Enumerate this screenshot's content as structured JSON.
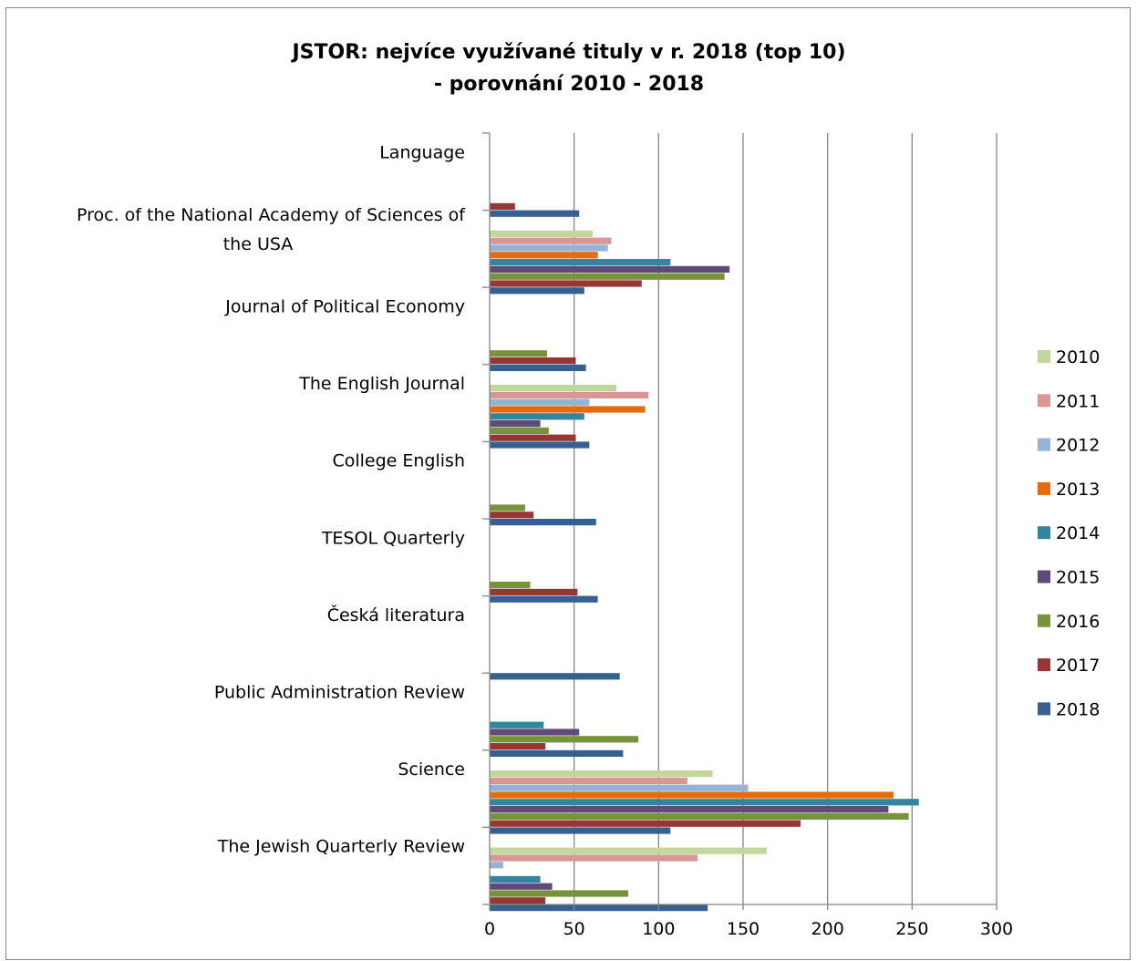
{
  "chart_data": {
    "type": "bar",
    "orientation": "horizontal",
    "title": [
      "JSTOR: nejvíce využívané tituly v r. 2018 (top 10)",
      "- porovnání 2010 - 2018"
    ],
    "categories": [
      "Language",
      "Proc. of the National Academy of Sciences of the USA",
      "Journal of Political Economy",
      "The English Journal",
      "College English",
      "TESOL Quarterly",
      "Česká literatura",
      "Public Administration Review",
      "Science",
      "The Jewish Quarterly Review"
    ],
    "category_label_lines": [
      [
        "Language"
      ],
      [
        "Proc. of the National Academy of Sciences of",
        "the USA"
      ],
      [
        "Journal of Political Economy"
      ],
      [
        "The English Journal"
      ],
      [
        "College English"
      ],
      [
        "TESOL Quarterly"
      ],
      [
        "Česká literatura"
      ],
      [
        "Public Administration Review"
      ],
      [
        "Science"
      ],
      [
        "The Jewish Quarterly Review"
      ]
    ],
    "series": [
      {
        "name": "2010",
        "color": "#C3D69B",
        "values": [
          0,
          61,
          0,
          75,
          0,
          0,
          0,
          0,
          132,
          164
        ]
      },
      {
        "name": "2011",
        "color": "#D99694",
        "values": [
          0,
          72,
          0,
          94,
          0,
          0,
          0,
          0,
          117,
          123
        ]
      },
      {
        "name": "2012",
        "color": "#95B3D7",
        "values": [
          0,
          70,
          0,
          59,
          0,
          0,
          0,
          0,
          153,
          8
        ]
      },
      {
        "name": "2013",
        "color": "#E46C0A",
        "values": [
          0,
          64,
          0,
          92,
          0,
          0,
          0,
          0,
          239,
          0
        ]
      },
      {
        "name": "2014",
        "color": "#31859C",
        "values": [
          0,
          107,
          0,
          56,
          0,
          0,
          0,
          32,
          254,
          30
        ]
      },
      {
        "name": "2015",
        "color": "#604A7B",
        "values": [
          0,
          142,
          0,
          30,
          0,
          0,
          0,
          53,
          236,
          37
        ]
      },
      {
        "name": "2016",
        "color": "#77933C",
        "values": [
          0,
          139,
          34,
          35,
          21,
          24,
          0,
          88,
          248,
          82
        ]
      },
      {
        "name": "2017",
        "color": "#953735",
        "values": [
          15,
          90,
          51,
          51,
          26,
          52,
          0,
          33,
          184,
          33
        ]
      },
      {
        "name": "2018",
        "color": "#366092",
        "values": [
          53,
          56,
          57,
          59,
          63,
          64,
          77,
          79,
          107,
          129
        ]
      }
    ],
    "xlim": [
      0,
      300
    ],
    "xticks": [
      "0",
      "50",
      "100",
      "150",
      "200",
      "250",
      "300"
    ],
    "grid": true,
    "legend": "right"
  }
}
